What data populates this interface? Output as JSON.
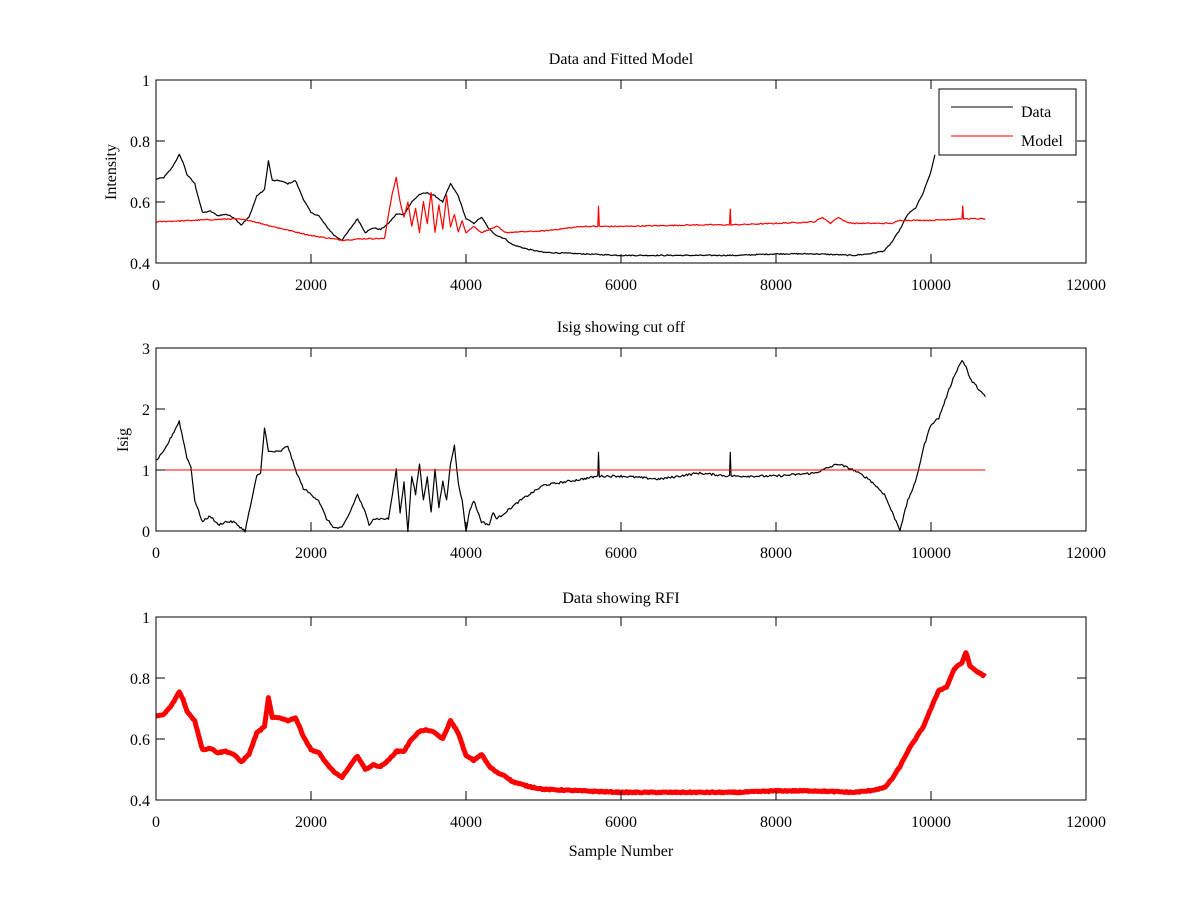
{
  "chart_data": [
    {
      "type": "line",
      "title": "Data and Fitted Model",
      "xlabel": "",
      "ylabel": "Intensity",
      "xlim": [
        0,
        12000
      ],
      "ylim": [
        0.4,
        1
      ],
      "xticks": [
        "0",
        "2000",
        "4000",
        "6000",
        "8000",
        "10000",
        "12000"
      ],
      "yticks": [
        "0.4",
        "0.6",
        "0.8",
        "1"
      ],
      "grid": false,
      "legend": {
        "position": "top-right",
        "entries": [
          "Data",
          "Model"
        ]
      },
      "series": [
        {
          "name": "Data",
          "color": "#000000",
          "x": [
            0,
            100,
            200,
            300,
            350,
            400,
            500,
            600,
            700,
            800,
            900,
            1000,
            1100,
            1200,
            1300,
            1400,
            1450,
            1500,
            1600,
            1700,
            1800,
            1900,
            2000,
            2100,
            2200,
            2300,
            2400,
            2500,
            2600,
            2700,
            2800,
            2900,
            3000,
            3100,
            3200,
            3300,
            3400,
            3500,
            3600,
            3700,
            3800,
            3900,
            4000,
            4100,
            4200,
            4300,
            4400,
            4500,
            4600,
            4800,
            5000,
            5500,
            6000,
            6500,
            7000,
            7500,
            8000,
            8500,
            9000,
            9200,
            9400,
            9500,
            9600,
            9700,
            9800,
            9900,
            10000,
            10050
          ],
          "y": [
            0.675,
            0.68,
            0.71,
            0.755,
            0.73,
            0.69,
            0.66,
            0.565,
            0.57,
            0.555,
            0.56,
            0.55,
            0.525,
            0.55,
            0.62,
            0.64,
            0.735,
            0.67,
            0.67,
            0.66,
            0.67,
            0.61,
            0.565,
            0.555,
            0.52,
            0.49,
            0.475,
            0.51,
            0.545,
            0.5,
            0.515,
            0.51,
            0.53,
            0.56,
            0.56,
            0.6,
            0.625,
            0.63,
            0.62,
            0.6,
            0.66,
            0.62,
            0.545,
            0.53,
            0.55,
            0.51,
            0.49,
            0.48,
            0.46,
            0.445,
            0.435,
            0.43,
            0.425,
            0.425,
            0.425,
            0.425,
            0.43,
            0.43,
            0.425,
            0.43,
            0.44,
            0.47,
            0.51,
            0.56,
            0.58,
            0.63,
            0.7,
            0.755
          ]
        },
        {
          "name": "Model",
          "color": "#ff0000",
          "x": [
            0,
            500,
            1000,
            1200,
            1500,
            2000,
            2400,
            2700,
            2950,
            3000,
            3050,
            3100,
            3150,
            3200,
            3250,
            3300,
            3350,
            3400,
            3450,
            3500,
            3550,
            3600,
            3650,
            3700,
            3750,
            3800,
            3850,
            3900,
            3950,
            4000,
            4100,
            4200,
            4300,
            4400,
            4500,
            5000,
            5500,
            5700,
            5710,
            5720,
            6000,
            7000,
            7400,
            7410,
            7420,
            8000,
            8500,
            8600,
            8700,
            8800,
            8900,
            9000,
            9500,
            9600,
            10000,
            10400,
            10410,
            10420,
            10600,
            10700
          ],
          "y": [
            0.535,
            0.54,
            0.545,
            0.54,
            0.52,
            0.49,
            0.475,
            0.48,
            0.48,
            0.56,
            0.63,
            0.68,
            0.6,
            0.55,
            0.6,
            0.52,
            0.58,
            0.5,
            0.6,
            0.53,
            0.63,
            0.5,
            0.59,
            0.51,
            0.62,
            0.52,
            0.56,
            0.5,
            0.54,
            0.5,
            0.52,
            0.5,
            0.51,
            0.52,
            0.5,
            0.505,
            0.52,
            0.52,
            0.585,
            0.52,
            0.52,
            0.525,
            0.525,
            0.575,
            0.525,
            0.53,
            0.535,
            0.55,
            0.53,
            0.55,
            0.535,
            0.53,
            0.53,
            0.54,
            0.54,
            0.545,
            0.585,
            0.545,
            0.545,
            0.545
          ]
        }
      ]
    },
    {
      "type": "line",
      "title": "Isig showing cut off",
      "xlabel": "",
      "ylabel": "Isig",
      "xlim": [
        0,
        12000
      ],
      "ylim": [
        0,
        3
      ],
      "xticks": [
        "0",
        "2000",
        "4000",
        "6000",
        "8000",
        "10000",
        "12000"
      ],
      "yticks": [
        "0",
        "1",
        "2",
        "3"
      ],
      "grid": false,
      "series": [
        {
          "name": "Isig",
          "color": "#000000",
          "x": [
            0,
            100,
            200,
            300,
            350,
            400,
            450,
            500,
            600,
            700,
            800,
            900,
            1000,
            1100,
            1150,
            1200,
            1300,
            1350,
            1400,
            1450,
            1500,
            1600,
            1700,
            1800,
            1900,
            2000,
            2100,
            2200,
            2300,
            2400,
            2500,
            2600,
            2700,
            2750,
            2800,
            2900,
            3000,
            3050,
            3100,
            3150,
            3200,
            3250,
            3300,
            3350,
            3400,
            3450,
            3500,
            3550,
            3600,
            3650,
            3700,
            3750,
            3800,
            3850,
            3900,
            3950,
            4000,
            4050,
            4100,
            4200,
            4300,
            4350,
            4400,
            4500,
            4700,
            5000,
            5500,
            5700,
            5710,
            5720,
            6000,
            6500,
            7000,
            7400,
            7410,
            7420,
            8000,
            8500,
            8700,
            8800,
            9000,
            9200,
            9400,
            9500,
            9600,
            9700,
            9800,
            9900,
            10000,
            10100,
            10200,
            10300,
            10400,
            10450,
            10500,
            10600,
            10700
          ],
          "y": [
            1.15,
            1.3,
            1.55,
            1.8,
            1.5,
            1.2,
            1.05,
            0.5,
            0.15,
            0.25,
            0.1,
            0.15,
            0.15,
            0.05,
            0.0,
            0.3,
            0.9,
            0.95,
            1.7,
            1.3,
            1.3,
            1.3,
            1.4,
            1.0,
            0.7,
            0.6,
            0.5,
            0.2,
            0.05,
            0.05,
            0.3,
            0.6,
            0.3,
            0.1,
            0.2,
            0.2,
            0.2,
            0.6,
            1.0,
            0.3,
            0.8,
            0.0,
            0.9,
            0.6,
            1.1,
            0.5,
            0.9,
            0.3,
            1.0,
            0.4,
            0.8,
            0.5,
            1.1,
            1.4,
            0.8,
            0.5,
            0.0,
            0.35,
            0.5,
            0.15,
            0.1,
            0.3,
            0.2,
            0.3,
            0.5,
            0.75,
            0.85,
            0.9,
            1.3,
            0.9,
            0.9,
            0.85,
            0.95,
            0.9,
            1.3,
            0.9,
            0.9,
            0.95,
            1.05,
            1.1,
            1.0,
            0.85,
            0.6,
            0.3,
            0.02,
            0.5,
            0.8,
            1.35,
            1.75,
            1.85,
            2.2,
            2.55,
            2.8,
            2.7,
            2.5,
            2.35,
            2.2
          ]
        },
        {
          "name": "Cut off",
          "color": "#ff0000",
          "x": [
            0,
            10700
          ],
          "y": [
            1,
            1
          ]
        }
      ]
    },
    {
      "type": "line",
      "title": "Data showing RFI",
      "xlabel": "Sample Number",
      "ylabel": "",
      "xlim": [
        0,
        12000
      ],
      "ylim": [
        0.4,
        1
      ],
      "xticks": [
        "0",
        "2000",
        "4000",
        "6000",
        "8000",
        "10000",
        "12000"
      ],
      "yticks": [
        "0.4",
        "0.6",
        "0.8",
        "1"
      ],
      "grid": false,
      "series": [
        {
          "name": "RFI data",
          "color": "#ff0000",
          "x": [
            0,
            100,
            200,
            300,
            350,
            400,
            500,
            600,
            700,
            800,
            900,
            1000,
            1100,
            1200,
            1300,
            1400,
            1450,
            1500,
            1600,
            1700,
            1800,
            1900,
            2000,
            2100,
            2200,
            2300,
            2400,
            2500,
            2600,
            2700,
            2800,
            2900,
            3000,
            3100,
            3200,
            3300,
            3400,
            3500,
            3600,
            3700,
            3800,
            3900,
            4000,
            4100,
            4200,
            4300,
            4400,
            4500,
            4600,
            4800,
            5000,
            5500,
            6000,
            6500,
            7000,
            7500,
            8000,
            8500,
            9000,
            9200,
            9400,
            9500,
            9600,
            9700,
            9800,
            9900,
            10000,
            10100,
            10200,
            10300,
            10400,
            10450,
            10500,
            10600,
            10700
          ],
          "y": [
            0.675,
            0.68,
            0.71,
            0.755,
            0.73,
            0.69,
            0.66,
            0.565,
            0.57,
            0.555,
            0.56,
            0.55,
            0.525,
            0.55,
            0.62,
            0.64,
            0.735,
            0.67,
            0.67,
            0.66,
            0.67,
            0.61,
            0.565,
            0.555,
            0.52,
            0.49,
            0.475,
            0.51,
            0.545,
            0.5,
            0.515,
            0.51,
            0.53,
            0.56,
            0.56,
            0.6,
            0.625,
            0.63,
            0.62,
            0.6,
            0.66,
            0.62,
            0.545,
            0.53,
            0.55,
            0.51,
            0.49,
            0.48,
            0.46,
            0.445,
            0.435,
            0.43,
            0.425,
            0.425,
            0.425,
            0.425,
            0.43,
            0.43,
            0.425,
            0.43,
            0.44,
            0.47,
            0.51,
            0.56,
            0.6,
            0.64,
            0.7,
            0.76,
            0.77,
            0.83,
            0.85,
            0.885,
            0.84,
            0.82,
            0.805
          ]
        }
      ]
    }
  ]
}
